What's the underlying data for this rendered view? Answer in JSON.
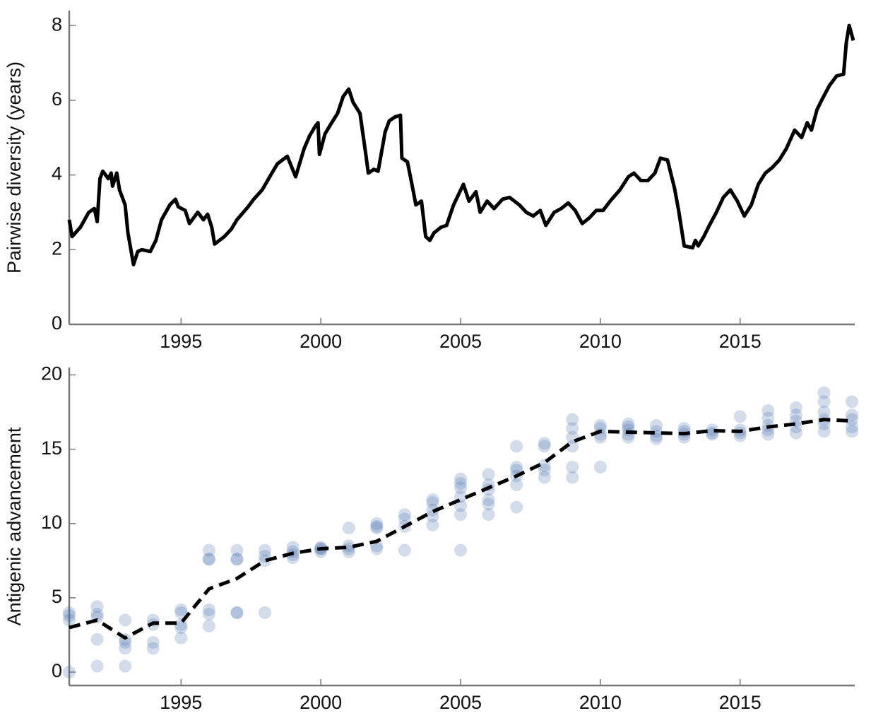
{
  "chart_data": [
    {
      "type": "line",
      "ylabel": "Pairwise diversity (years)",
      "x": [
        1991.0,
        1991.1,
        1991.4,
        1991.7,
        1991.9,
        1992.0,
        1992.1,
        1992.2,
        1992.4,
        1992.5,
        1992.55,
        1992.7,
        1992.8,
        1993.0,
        1993.1,
        1993.3,
        1993.45,
        1993.6,
        1993.9,
        1994.1,
        1994.3,
        1994.6,
        1994.8,
        1994.9,
        1995.15,
        1995.3,
        1995.6,
        1995.8,
        1995.95,
        1996.1,
        1996.2,
        1996.55,
        1996.8,
        1997.0,
        1997.4,
        1997.6,
        1997.9,
        1998.25,
        1998.45,
        1998.8,
        1999.1,
        1999.4,
        1999.6,
        1999.8,
        1999.9,
        1999.95,
        2000.15,
        2000.35,
        2000.6,
        2000.8,
        2001.0,
        2001.15,
        2001.4,
        2001.6,
        2001.7,
        2001.9,
        2002.05,
        2002.3,
        2002.45,
        2002.65,
        2002.85,
        2002.9,
        2003.1,
        2003.3,
        2003.4,
        2003.6,
        2003.75,
        2003.9,
        2004.05,
        2004.3,
        2004.5,
        2004.75,
        2005.1,
        2005.3,
        2005.55,
        2005.7,
        2005.95,
        2006.2,
        2006.5,
        2006.75,
        2007.1,
        2007.35,
        2007.6,
        2007.85,
        2008.05,
        2008.35,
        2008.6,
        2008.85,
        2009.1,
        2009.35,
        2009.6,
        2009.85,
        2010.1,
        2010.35,
        2010.7,
        2011.0,
        2011.2,
        2011.45,
        2011.7,
        2011.95,
        2012.15,
        2012.4,
        2012.65,
        2012.8,
        2013.0,
        2013.3,
        2013.4,
        2013.5,
        2013.7,
        2013.9,
        2014.15,
        2014.4,
        2014.65,
        2014.9,
        2015.15,
        2015.4,
        2015.65,
        2015.9,
        2016.15,
        2016.4,
        2016.65,
        2016.95,
        2017.2,
        2017.4,
        2017.55,
        2017.75,
        2017.95,
        2018.2,
        2018.45,
        2018.7,
        2018.8,
        2018.9,
        2019.05
      ],
      "series": [
        {
          "color": "#000000",
          "values": [
            2.8,
            2.35,
            2.6,
            3.0,
            3.1,
            2.75,
            3.9,
            4.1,
            3.9,
            4.05,
            3.7,
            4.05,
            3.6,
            3.2,
            2.45,
            1.6,
            1.95,
            2.0,
            1.95,
            2.25,
            2.8,
            3.2,
            3.35,
            3.15,
            3.05,
            2.7,
            3.0,
            2.8,
            2.95,
            2.6,
            2.15,
            2.35,
            2.55,
            2.8,
            3.15,
            3.35,
            3.6,
            4.05,
            4.3,
            4.5,
            3.95,
            4.7,
            5.05,
            5.3,
            5.4,
            4.55,
            5.1,
            5.35,
            5.65,
            6.1,
            6.3,
            5.95,
            5.65,
            4.6,
            4.05,
            4.15,
            4.1,
            5.15,
            5.45,
            5.55,
            5.6,
            4.45,
            4.35,
            3.6,
            3.2,
            3.3,
            2.35,
            2.25,
            2.45,
            2.6,
            2.65,
            3.2,
            3.75,
            3.3,
            3.55,
            3.0,
            3.3,
            3.1,
            3.35,
            3.4,
            3.2,
            3.0,
            2.9,
            3.05,
            2.65,
            3.0,
            3.1,
            3.25,
            3.05,
            2.7,
            2.85,
            3.05,
            3.05,
            3.3,
            3.6,
            3.95,
            4.05,
            3.85,
            3.85,
            4.05,
            4.45,
            4.4,
            3.65,
            3.05,
            2.1,
            2.05,
            2.25,
            2.1,
            2.35,
            2.65,
            3.0,
            3.4,
            3.6,
            3.3,
            2.9,
            3.2,
            3.75,
            4.05,
            4.2,
            4.4,
            4.7,
            5.2,
            5.0,
            5.4,
            5.2,
            5.75,
            6.05,
            6.4,
            6.65,
            6.7,
            7.55,
            8.0,
            7.6
          ]
        }
      ],
      "xlim": [
        1991.0,
        2019.1
      ],
      "ylim": [
        0,
        8.4
      ],
      "xticks": [
        1995,
        2000,
        2005,
        2010,
        2015
      ],
      "yticks": [
        0,
        2,
        4,
        6,
        8
      ]
    },
    {
      "type": "scatter",
      "ylabel": "Antigenic advancement",
      "series": [
        {
          "type": "scatter",
          "color": "#4a72b0",
          "opacity": 0.25,
          "x": [
            1991,
            1991,
            1991,
            1991,
            1992,
            1992,
            1992,
            1992,
            1992,
            1993,
            1993,
            1993,
            1993,
            1993,
            1994,
            1994,
            1994,
            1994,
            1995,
            1995,
            1995,
            1995,
            1995,
            1996,
            1996,
            1996,
            1996,
            1996,
            1996,
            1997,
            1997,
            1997,
            1997,
            1997,
            1998,
            1998,
            1998,
            1998,
            1999,
            1999,
            1999,
            1999,
            2000,
            2000,
            2000,
            2000,
            2001,
            2001,
            2001,
            2001,
            2002,
            2002,
            2002,
            2002,
            2002,
            2003,
            2003,
            2003,
            2003,
            2004,
            2004,
            2004,
            2004,
            2004,
            2005,
            2005,
            2005,
            2005,
            2005,
            2005,
            2005,
            2006,
            2006,
            2006,
            2006,
            2006,
            2006,
            2007,
            2007,
            2007,
            2007,
            2007,
            2007,
            2008,
            2008,
            2008,
            2008,
            2008,
            2009,
            2009,
            2009,
            2009,
            2009,
            2009,
            2010,
            2010,
            2010,
            2010,
            2010,
            2011,
            2011,
            2011,
            2011,
            2011,
            2012,
            2012,
            2012,
            2012,
            2013,
            2013,
            2013,
            2013,
            2014,
            2014,
            2014,
            2015,
            2015,
            2015,
            2015,
            2016,
            2016,
            2016,
            2016,
            2016,
            2017,
            2017,
            2017,
            2017,
            2017,
            2018,
            2018,
            2018,
            2018,
            2018,
            2018,
            2019,
            2019,
            2019,
            2019,
            2019
          ],
          "values": [
            0,
            3.5,
            3.8,
            4.0,
            0.4,
            2.2,
            3.7,
            3.9,
            4.4,
            0.4,
            1.6,
            2.0,
            2.2,
            3.5,
            1.6,
            2.0,
            3.2,
            3.5,
            2.3,
            3.0,
            3.2,
            4.0,
            4.2,
            3.1,
            3.9,
            4.2,
            7.6,
            7.6,
            8.2,
            4.0,
            4.0,
            7.6,
            7.6,
            8.2,
            4.0,
            7.5,
            7.8,
            8.2,
            7.7,
            7.9,
            8.1,
            8.4,
            8.1,
            8.3,
            8.3,
            8.4,
            8.1,
            8.3,
            8.5,
            9.7,
            8.3,
            8.5,
            9.7,
            9.8,
            10.0,
            8.2,
            9.8,
            10.3,
            10.6,
            9.9,
            10.5,
            10.9,
            11.4,
            11.6,
            8.2,
            10.6,
            11.2,
            11.8,
            12.4,
            12.7,
            13.0,
            10.6,
            11.3,
            11.6,
            12.3,
            12.6,
            13.3,
            11.1,
            12.6,
            13.2,
            13.6,
            13.8,
            15.2,
            13.1,
            13.6,
            13.9,
            15.2,
            15.4,
            13.1,
            13.8,
            15.2,
            15.8,
            16.4,
            17.0,
            13.8,
            15.8,
            16.0,
            16.4,
            16.6,
            15.8,
            16.0,
            16.3,
            16.5,
            16.7,
            15.7,
            15.9,
            16.2,
            16.6,
            15.8,
            16.0,
            16.2,
            16.4,
            16.0,
            16.1,
            16.3,
            15.9,
            16.1,
            16.3,
            17.2,
            16.0,
            16.3,
            16.6,
            17.1,
            17.6,
            16.1,
            16.5,
            16.9,
            17.3,
            17.8,
            16.2,
            16.7,
            17.0,
            17.5,
            18.2,
            18.8,
            16.2,
            16.5,
            17.0,
            17.3,
            18.2
          ]
        },
        {
          "type": "line",
          "color": "#000000",
          "dashed": true,
          "x": [
            1991,
            1992,
            1993,
            1994,
            1995,
            1996,
            1997,
            1998,
            1999,
            2000,
            2001,
            2002,
            2003,
            2004,
            2005,
            2006,
            2007,
            2008,
            2009,
            2010,
            2011,
            2012,
            2013,
            2014,
            2015,
            2016,
            2017,
            2018,
            2019
          ],
          "values": [
            3.0,
            3.5,
            2.3,
            3.3,
            3.3,
            5.6,
            6.3,
            7.5,
            8.0,
            8.3,
            8.4,
            8.8,
            9.8,
            10.8,
            11.6,
            12.4,
            13.2,
            14.1,
            15.5,
            16.2,
            16.15,
            16.1,
            16.05,
            16.25,
            16.2,
            16.5,
            16.7,
            17.0,
            16.9
          ]
        }
      ],
      "xlim": [
        1991.0,
        2019.1
      ],
      "ylim": [
        -0.9,
        20.5
      ],
      "xticks": [
        1995,
        2000,
        2005,
        2010,
        2015
      ],
      "yticks": [
        0,
        5,
        10,
        15,
        20
      ]
    }
  ]
}
